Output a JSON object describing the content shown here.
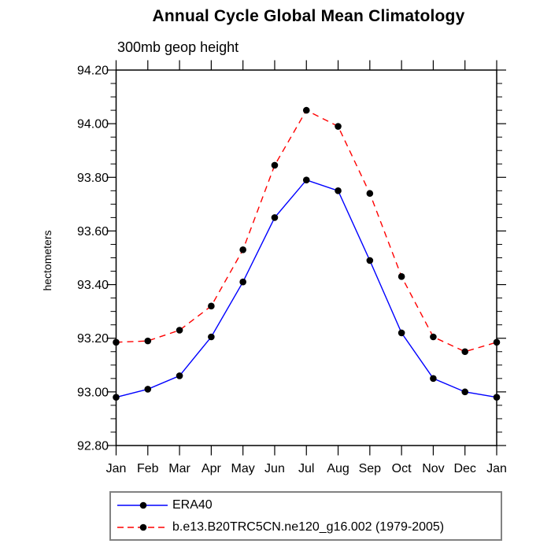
{
  "title": "Annual Cycle Global Mean Climatology",
  "subtitle": "300mb geop height",
  "ylabel": "hectometers",
  "colors": {
    "era40_line": "#0000ff",
    "model_line": "#ff0000",
    "marker": "#000000",
    "axis": "#000000",
    "legend_border": "#828282"
  },
  "legend": {
    "position": "bottom",
    "items": [
      {
        "label": "ERA40",
        "line_style": "solid",
        "color": "#0000ff"
      },
      {
        "label": "b.e13.B20TRC5CN.ne120_g16.002 (1979-2005)",
        "line_style": "dashed",
        "color": "#ff0000"
      }
    ]
  },
  "chart_data": {
    "type": "line",
    "title": "Annual Cycle Global Mean Climatology",
    "subtitle": "300mb geop height",
    "xlabel": "",
    "ylabel": "hectometers",
    "categories": [
      "Jan",
      "Feb",
      "Mar",
      "Apr",
      "May",
      "Jun",
      "Jul",
      "Aug",
      "Sep",
      "Oct",
      "Nov",
      "Dec",
      "Jan"
    ],
    "ylim": [
      92.8,
      94.2
    ],
    "ytick_major_interval": 0.2,
    "ytick_minor_interval": 0.05,
    "ytick_labels": [
      "92.80",
      "93.00",
      "93.20",
      "93.40",
      "93.60",
      "93.80",
      "94.00",
      "94.20"
    ],
    "grid": false,
    "legend_position": "bottom-left-box",
    "marker": {
      "shape": "circle",
      "color": "#000000"
    },
    "series": [
      {
        "name": "ERA40",
        "color": "#0000ff",
        "style": "solid",
        "values": [
          92.98,
          93.01,
          93.06,
          93.205,
          93.41,
          93.65,
          93.79,
          93.75,
          93.49,
          93.22,
          93.05,
          93.0,
          92.98
        ]
      },
      {
        "name": "b.e13.B20TRC5CN.ne120_g16.002 (1979-2005)",
        "color": "#ff0000",
        "style": "dashed",
        "values": [
          93.185,
          93.19,
          93.23,
          93.32,
          93.53,
          93.845,
          94.05,
          93.99,
          93.74,
          93.43,
          93.205,
          93.15,
          93.185
        ]
      }
    ]
  }
}
